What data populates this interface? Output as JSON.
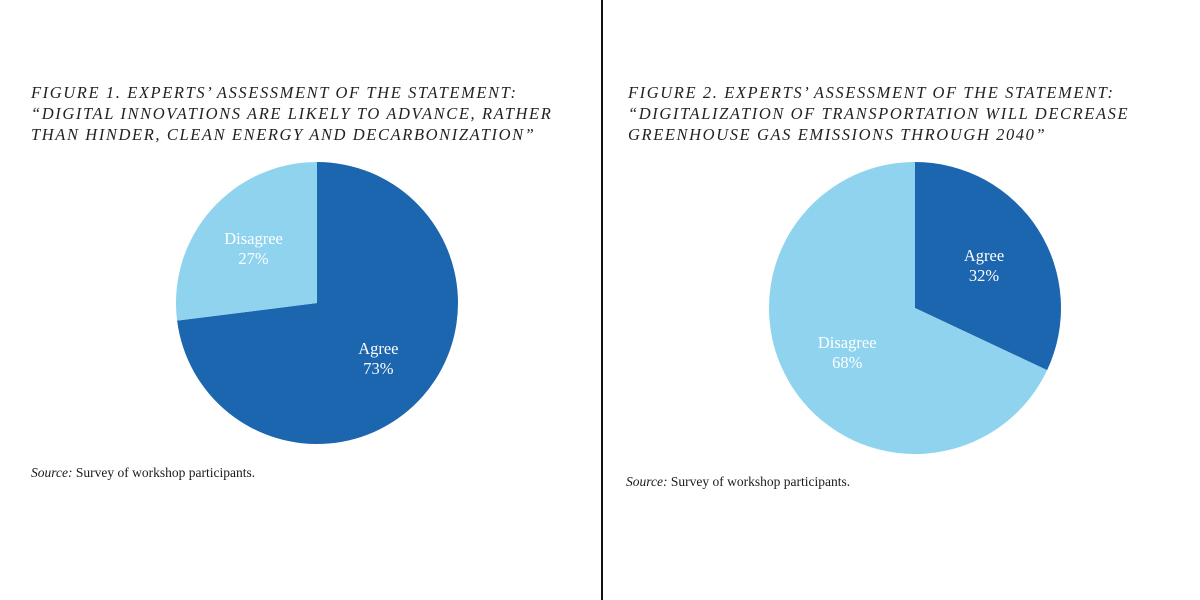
{
  "colors": {
    "agree": "#1b66ae",
    "disagree": "#8fd3ef",
    "label": "#ffffff"
  },
  "figures": [
    {
      "title_lines": [
        "FIGURE 1. EXPERTS’ ASSESSMENT OF THE STATEMENT:",
        "“DIGITAL INNOVATIONS ARE LIKELY TO ADVANCE, RATHER",
        "THAN HINDER, CLEAN ENERGY AND DECARBONIZATION”"
      ],
      "source_label": "Source:",
      "source_text": " Survey of workshop participants."
    },
    {
      "title_lines": [
        "FIGURE 2. EXPERTS’ ASSESSMENT OF THE STATEMENT:",
        "“DIGITALIZATION OF TRANSPORTATION WILL DECREASE",
        "GREENHOUSE GAS EMISSIONS THROUGH 2040”"
      ],
      "source_label": "Source:",
      "source_text": " Survey of workshop participants."
    }
  ],
  "chart_data": [
    {
      "type": "pie",
      "title": "FIGURE 1. EXPERTS’ ASSESSMENT OF THE STATEMENT: “DIGITAL INNOVATIONS ARE LIKELY TO ADVANCE, RATHER THAN HINDER, CLEAN ENERGY AND DECARBONIZATION”",
      "slices": [
        {
          "label": "Agree",
          "value": 73,
          "value_label": "73%",
          "color": "#1b66ae"
        },
        {
          "label": "Disagree",
          "value": 27,
          "value_label": "27%",
          "color": "#8fd3ef"
        }
      ],
      "start": "12 o'clock",
      "direction": "clockwise"
    },
    {
      "type": "pie",
      "title": "FIGURE 2. EXPERTS’ ASSESSMENT OF THE STATEMENT: “DIGITALIZATION OF TRANSPORTATION WILL DECREASE GREENHOUSE GAS EMISSIONS THROUGH 2040”",
      "slices": [
        {
          "label": "Agree",
          "value": 32,
          "value_label": "32%",
          "color": "#1b66ae"
        },
        {
          "label": "Disagree",
          "value": 68,
          "value_label": "68%",
          "color": "#8fd3ef"
        }
      ],
      "start": "12 o'clock",
      "direction": "clockwise"
    }
  ]
}
